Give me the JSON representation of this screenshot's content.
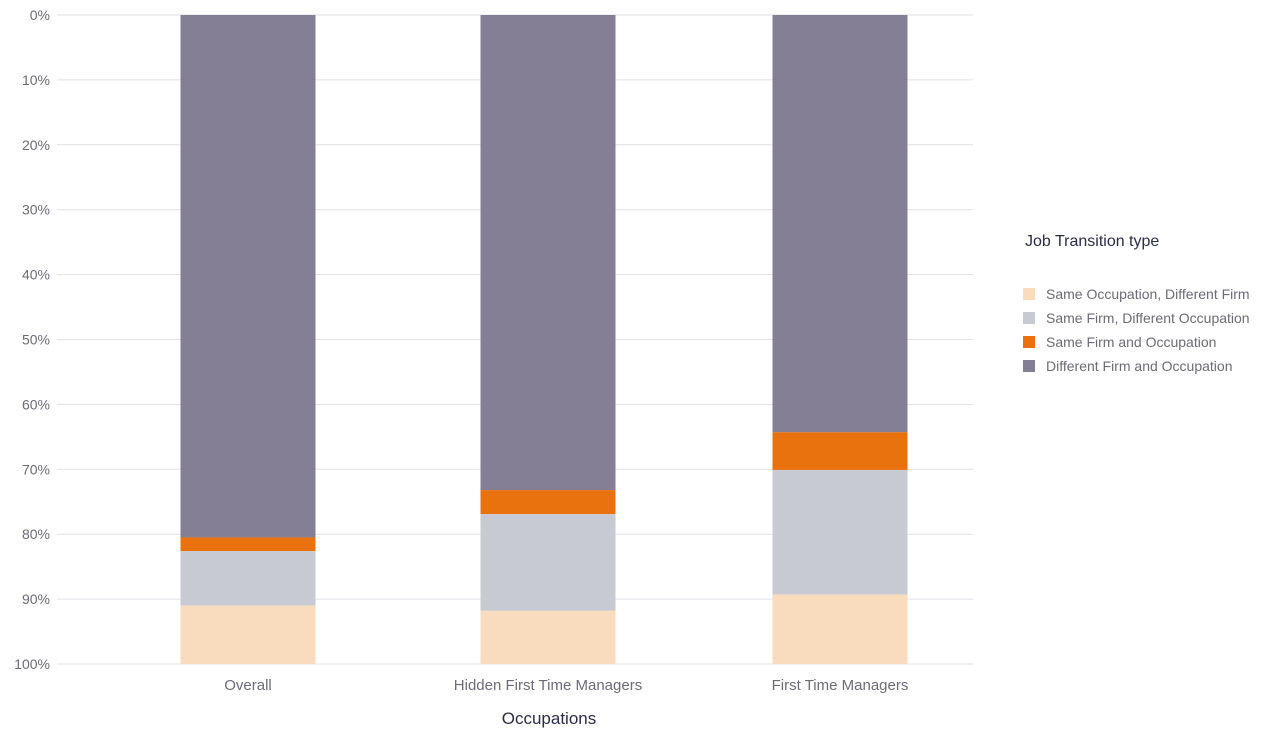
{
  "chart_data": {
    "type": "bar",
    "stacked": true,
    "orientation": "vertical",
    "y_axis_inverted": true,
    "categories": [
      "Overall",
      "Hidden First Time Managers",
      "First Time Managers"
    ],
    "series": [
      {
        "name": "Different Firm and Occupation",
        "color": "#857f95",
        "values": [
          80.5,
          73.2,
          64.3
        ]
      },
      {
        "name": "Same Firm and Occupation",
        "color": "#e9720e",
        "values": [
          2.1,
          3.7,
          5.8
        ]
      },
      {
        "name": "Same Firm, Different Occupation",
        "color": "#c7cad2",
        "values": [
          8.4,
          14.9,
          19.2
        ]
      },
      {
        "name": "Same Occupation, Different Firm",
        "color": "#f9dcbe",
        "values": [
          9.0,
          8.2,
          10.7
        ]
      }
    ],
    "y_ticks": [
      "0%",
      "10%",
      "20%",
      "30%",
      "40%",
      "50%",
      "60%",
      "70%",
      "80%",
      "90%",
      "100%"
    ],
    "ylim": [
      0,
      100
    ],
    "xlabel": "Occupations",
    "ylabel": "",
    "grid": true,
    "legend": {
      "title": "Job Transition type",
      "position": "right",
      "entries": [
        {
          "label": "Same Occupation, Different Firm",
          "color": "#f9dcbe"
        },
        {
          "label": "Same Firm, Different Occupation",
          "color": "#c7cad2"
        },
        {
          "label": "Same Firm and Occupation",
          "color": "#e9720e"
        },
        {
          "label": "Different Firm and Occupation",
          "color": "#857f95"
        }
      ]
    }
  }
}
